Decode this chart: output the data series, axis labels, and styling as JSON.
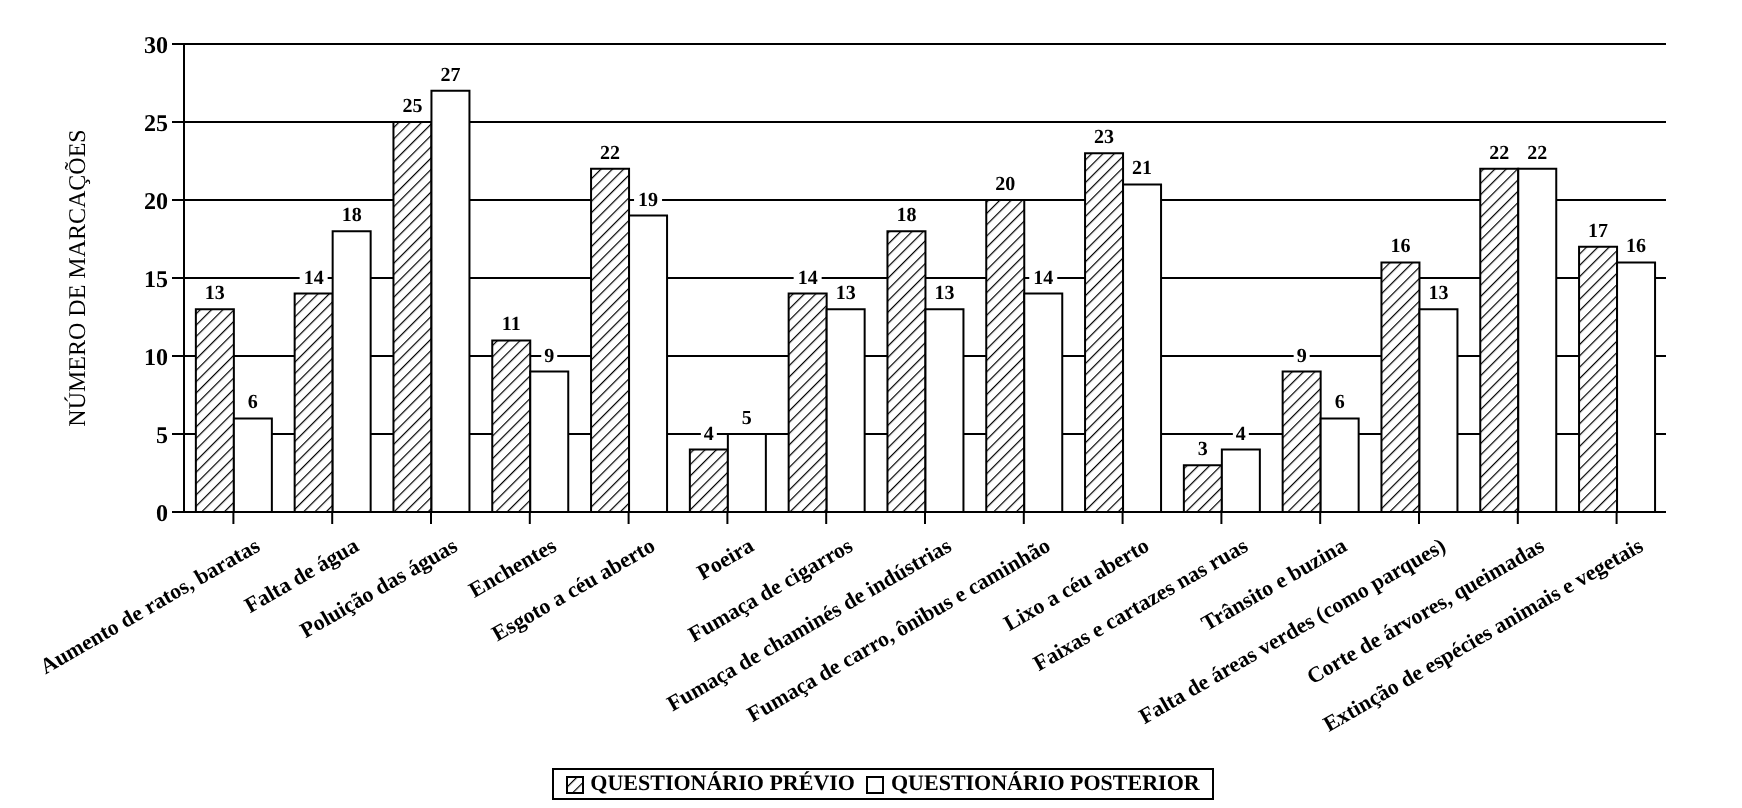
{
  "chart_data": {
    "type": "bar",
    "ylabel": "NÚMERO DE MARCAÇÕES",
    "categories": [
      "Aumento de ratos, baratas",
      "Falta de água",
      "Poluição das águas",
      "Enchentes",
      "Esgoto a céu aberto",
      "Poeira",
      "Fumaça de cigarros",
      "Fumaça de chaminés de indústrias",
      "Fumaça de carro, ônibus e caminhão",
      "Lixo a céu aberto",
      "Faixas e cartazes nas ruas",
      "Trânsito e buzina",
      "Falta de áreas verdes (como parques)",
      "Corte de árvores, queimadas",
      "Extinção de espécies animais e vegetais"
    ],
    "series": [
      {
        "name": "QUESTIONÁRIO PRÉVIO",
        "color": "#000000",
        "values": [
          13,
          14,
          25,
          11,
          22,
          4,
          14,
          18,
          20,
          23,
          3,
          9,
          16,
          22,
          17
        ]
      },
      {
        "name": "QUESTIONÁRIO POSTERIOR",
        "color": "#ffffff",
        "values": [
          6,
          18,
          27,
          9,
          19,
          5,
          13,
          13,
          14,
          21,
          4,
          6,
          13,
          22,
          16
        ]
      }
    ],
    "ylim": [
      0,
      30
    ],
    "yticks": [
      0,
      5,
      10,
      15,
      20,
      25,
      30
    ],
    "grid": "y",
    "legend": "bottom",
    "data_labels": true
  }
}
